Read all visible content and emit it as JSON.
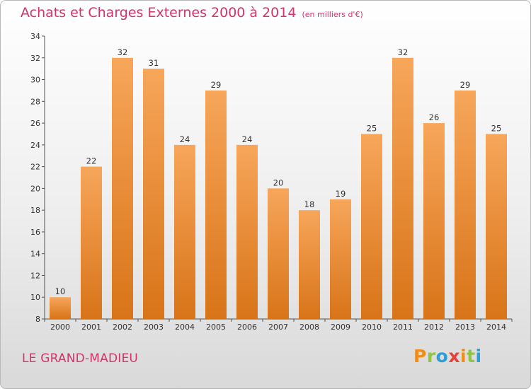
{
  "header": {
    "title": "Achats et Charges Externes 2000 à 2014",
    "subtitle": "(en milliers d'€)"
  },
  "footer": {
    "location": "LE GRAND-MADIEU",
    "logo_text": "Proxiti",
    "logo_letters": [
      {
        "char": "P",
        "color": "#f08c1a"
      },
      {
        "char": "r",
        "color": "#8dc63f"
      },
      {
        "char": "o",
        "color": "#2a9fd8"
      },
      {
        "char": "x",
        "color": "#e8403a"
      },
      {
        "char": "i",
        "color": "#f08c1a"
      },
      {
        "char": "t",
        "color": "#8dc63f"
      },
      {
        "char": "i",
        "color": "#2a9fd8"
      }
    ]
  },
  "colors": {
    "bar_top": "#f7a65a",
    "bar_bottom": "#d87418",
    "title": "#d4336b"
  },
  "chart_data": {
    "type": "bar",
    "title": "Achats et Charges Externes 2000 à 2014",
    "subtitle": "(en milliers d'€)",
    "xlabel": "",
    "ylabel": "",
    "ylim": [
      8,
      34
    ],
    "yticks": [
      8,
      10,
      12,
      14,
      16,
      18,
      20,
      22,
      24,
      26,
      28,
      30,
      32,
      34
    ],
    "grid": false,
    "categories": [
      "2000",
      "2001",
      "2002",
      "2003",
      "2004",
      "2005",
      "2006",
      "2007",
      "2008",
      "2009",
      "2010",
      "2011",
      "2012",
      "2013",
      "2014"
    ],
    "values": [
      10,
      22,
      32,
      31,
      24,
      29,
      24,
      20,
      18,
      19,
      25,
      32,
      26,
      29,
      25
    ]
  }
}
